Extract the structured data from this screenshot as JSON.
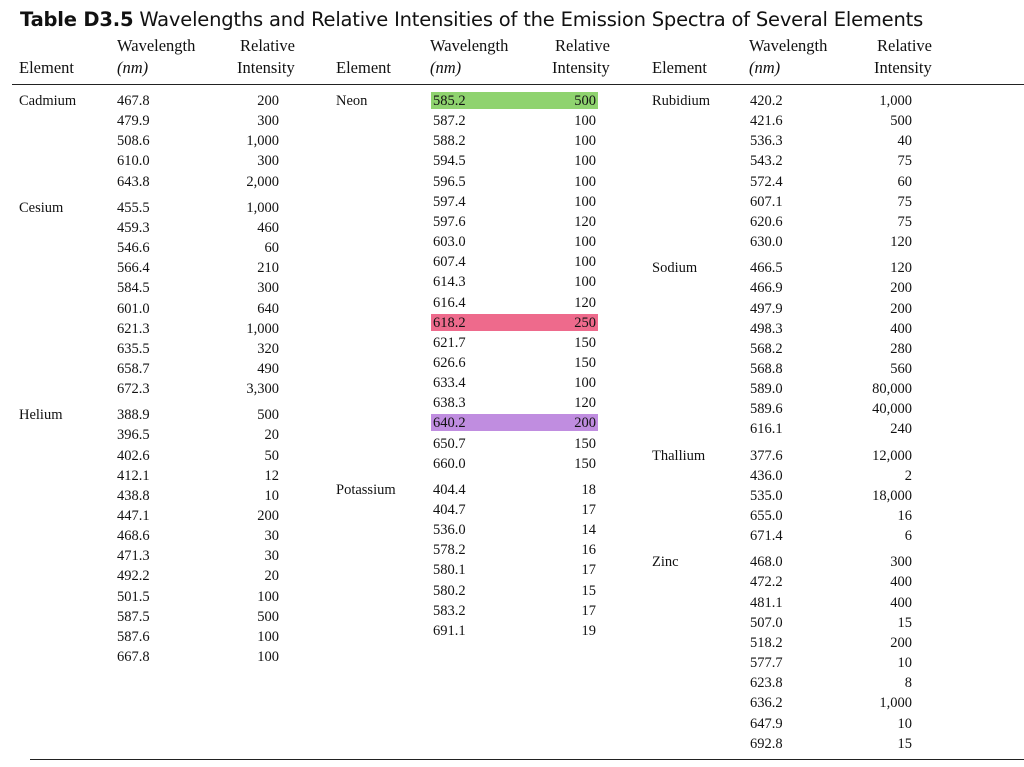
{
  "title": {
    "label": "Table D3.5",
    "text": "Wavelengths and Relative Intensities of the Emission Spectra of Several Elements"
  },
  "headers": {
    "element": "Element",
    "wavelength": "Wavelength",
    "wavelength_unit": "(nm)",
    "relative": "Relative",
    "intensity": "Intensity"
  },
  "colors": {
    "green": "#8fd36f",
    "pink": "#ee6a8c",
    "purple": "#c08de0"
  },
  "columns": [
    {
      "rows": [
        {
          "element": "Cadmium",
          "wl": "467.8",
          "ri": "200"
        },
        {
          "wl": "479.9",
          "ri": "300"
        },
        {
          "wl": "508.6",
          "ri": "1,000"
        },
        {
          "wl": "610.0",
          "ri": "300"
        },
        {
          "wl": "643.8",
          "ri": "2,000"
        },
        {
          "element": "Cesium",
          "wl": "455.5",
          "ri": "1,000"
        },
        {
          "wl": "459.3",
          "ri": "460"
        },
        {
          "wl": "546.6",
          "ri": "60"
        },
        {
          "wl": "566.4",
          "ri": "210"
        },
        {
          "wl": "584.5",
          "ri": "300"
        },
        {
          "wl": "601.0",
          "ri": "640"
        },
        {
          "wl": "621.3",
          "ri": "1,000"
        },
        {
          "wl": "635.5",
          "ri": "320"
        },
        {
          "wl": "658.7",
          "ri": "490"
        },
        {
          "wl": "672.3",
          "ri": "3,300"
        },
        {
          "element": "Helium",
          "wl": "388.9",
          "ri": "500"
        },
        {
          "wl": "396.5",
          "ri": "20"
        },
        {
          "wl": "402.6",
          "ri": "50"
        },
        {
          "wl": "412.1",
          "ri": "12"
        },
        {
          "wl": "438.8",
          "ri": "10"
        },
        {
          "wl": "447.1",
          "ri": "200"
        },
        {
          "wl": "468.6",
          "ri": "30"
        },
        {
          "wl": "471.3",
          "ri": "30"
        },
        {
          "wl": "492.2",
          "ri": "20"
        },
        {
          "wl": "501.5",
          "ri": "100"
        },
        {
          "wl": "587.5",
          "ri": "500"
        },
        {
          "wl": "587.6",
          "ri": "100"
        },
        {
          "wl": "667.8",
          "ri": "100"
        }
      ]
    },
    {
      "rows": [
        {
          "element": "Neon",
          "wl": "585.2",
          "ri": "500",
          "highlight": "green"
        },
        {
          "wl": "587.2",
          "ri": "100"
        },
        {
          "wl": "588.2",
          "ri": "100"
        },
        {
          "wl": "594.5",
          "ri": "100"
        },
        {
          "wl": "596.5",
          "ri": "100"
        },
        {
          "wl": "597.4",
          "ri": "100"
        },
        {
          "wl": "597.6",
          "ri": "120"
        },
        {
          "wl": "603.0",
          "ri": "100"
        },
        {
          "wl": "607.4",
          "ri": "100"
        },
        {
          "wl": "614.3",
          "ri": "100"
        },
        {
          "wl": "616.4",
          "ri": "120"
        },
        {
          "wl": "618.2",
          "ri": "250",
          "highlight": "pink"
        },
        {
          "wl": "621.7",
          "ri": "150"
        },
        {
          "wl": "626.6",
          "ri": "150"
        },
        {
          "wl": "633.4",
          "ri": "100"
        },
        {
          "wl": "638.3",
          "ri": "120"
        },
        {
          "wl": "640.2",
          "ri": "200",
          "highlight": "purple"
        },
        {
          "wl": "650.7",
          "ri": "150"
        },
        {
          "wl": "660.0",
          "ri": "150"
        },
        {
          "element": "Potassium",
          "wl": "404.4",
          "ri": "18"
        },
        {
          "wl": "404.7",
          "ri": "17"
        },
        {
          "wl": "536.0",
          "ri": "14"
        },
        {
          "wl": "578.2",
          "ri": "16"
        },
        {
          "wl": "580.1",
          "ri": "17"
        },
        {
          "wl": "580.2",
          "ri": "15"
        },
        {
          "wl": "583.2",
          "ri": "17"
        },
        {
          "wl": "691.1",
          "ri": "19"
        }
      ]
    },
    {
      "rows": [
        {
          "element": "Rubidium",
          "wl": "420.2",
          "ri": "1,000"
        },
        {
          "wl": "421.6",
          "ri": "500"
        },
        {
          "wl": "536.3",
          "ri": "40"
        },
        {
          "wl": "543.2",
          "ri": "75"
        },
        {
          "wl": "572.4",
          "ri": "60"
        },
        {
          "wl": "607.1",
          "ri": "75"
        },
        {
          "wl": "620.6",
          "ri": "75"
        },
        {
          "wl": "630.0",
          "ri": "120"
        },
        {
          "element": "Sodium",
          "wl": "466.5",
          "ri": "120"
        },
        {
          "wl": "466.9",
          "ri": "200"
        },
        {
          "wl": "497.9",
          "ri": "200"
        },
        {
          "wl": "498.3",
          "ri": "400"
        },
        {
          "wl": "568.2",
          "ri": "280"
        },
        {
          "wl": "568.8",
          "ri": "560"
        },
        {
          "wl": "589.0",
          "ri": "80,000"
        },
        {
          "wl": "589.6",
          "ri": "40,000"
        },
        {
          "wl": "616.1",
          "ri": "240"
        },
        {
          "element": "Thallium",
          "wl": "377.6",
          "ri": "12,000"
        },
        {
          "wl": "436.0",
          "ri": "2"
        },
        {
          "wl": "535.0",
          "ri": "18,000"
        },
        {
          "wl": "655.0",
          "ri": "16"
        },
        {
          "wl": "671.4",
          "ri": "6"
        },
        {
          "element": "Zinc",
          "wl": "468.0",
          "ri": "300"
        },
        {
          "wl": "472.2",
          "ri": "400"
        },
        {
          "wl": "481.1",
          "ri": "400"
        },
        {
          "wl": "507.0",
          "ri": "15"
        },
        {
          "wl": "518.2",
          "ri": "200"
        },
        {
          "wl": "577.7",
          "ri": "10"
        },
        {
          "wl": "623.8",
          "ri": "8"
        },
        {
          "wl": "636.2",
          "ri": "1,000"
        },
        {
          "wl": "647.9",
          "ri": "10"
        },
        {
          "wl": "692.8",
          "ri": "15"
        }
      ]
    }
  ]
}
